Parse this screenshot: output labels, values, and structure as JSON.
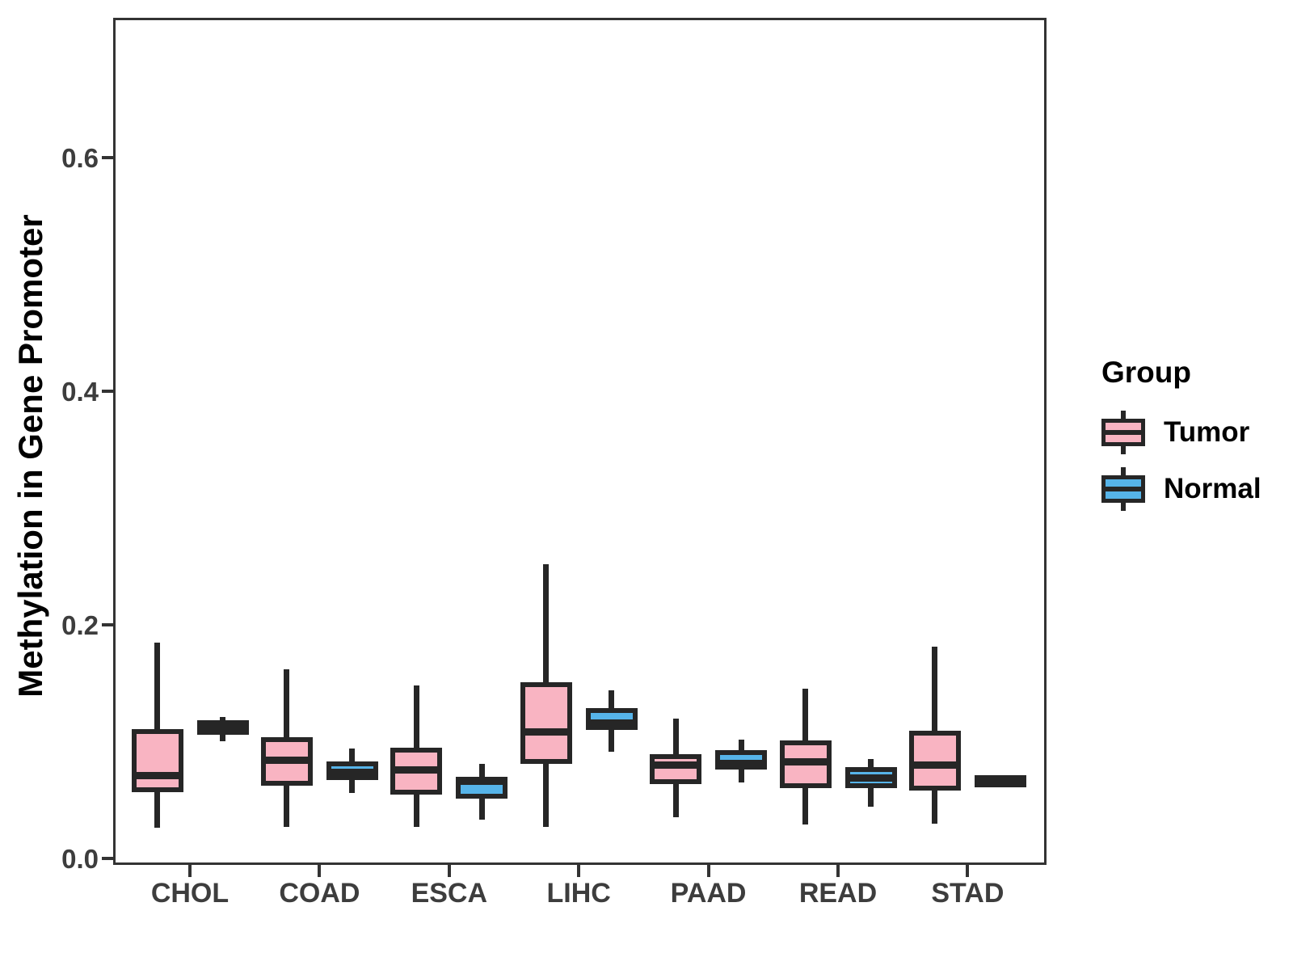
{
  "chart_data": {
    "type": "boxplot",
    "title": "",
    "xlabel": "",
    "ylabel": "Methylation in Gene Promoter",
    "categories": [
      "CHOL",
      "COAD",
      "ESCA",
      "LIHC",
      "PAAD",
      "READ",
      "STAD"
    ],
    "y_ticks": [
      "0.0",
      "0.2",
      "0.4",
      "0.6"
    ],
    "y_tick_values": [
      0.0,
      0.2,
      0.4,
      0.6
    ],
    "ylim": [
      -0.015,
      0.72
    ],
    "grid": "off",
    "legend": {
      "title": "Group",
      "position": "right",
      "entries": [
        {
          "label": "Tumor",
          "color": "#F9B4C2"
        },
        {
          "label": "Normal",
          "color": "#56B4E9"
        }
      ]
    },
    "colors": {
      "tumor_fill": "#F9B4C2",
      "normal_fill": "#56B4E9",
      "stroke": "#262626",
      "axis": "#333333"
    },
    "series": [
      {
        "name": "Tumor",
        "color": "#F9B4C2",
        "boxes": [
          {
            "category": "CHOL",
            "whisker_low": 0.026,
            "q1": 0.057,
            "median": 0.071,
            "q3": 0.111,
            "whisker_high": 0.185
          },
          {
            "category": "COAD",
            "whisker_low": 0.027,
            "q1": 0.062,
            "median": 0.084,
            "q3": 0.104,
            "whisker_high": 0.162
          },
          {
            "category": "ESCA",
            "whisker_low": 0.027,
            "q1": 0.055,
            "median": 0.076,
            "q3": 0.095,
            "whisker_high": 0.148
          },
          {
            "category": "LIHC",
            "whisker_low": 0.027,
            "q1": 0.081,
            "median": 0.108,
            "q3": 0.151,
            "whisker_high": 0.252
          },
          {
            "category": "PAAD",
            "whisker_low": 0.035,
            "q1": 0.064,
            "median": 0.08,
            "q3": 0.089,
            "whisker_high": 0.12
          },
          {
            "category": "READ",
            "whisker_low": 0.029,
            "q1": 0.06,
            "median": 0.083,
            "q3": 0.101,
            "whisker_high": 0.145
          },
          {
            "category": "STAD",
            "whisker_low": 0.03,
            "q1": 0.058,
            "median": 0.08,
            "q3": 0.109,
            "whisker_high": 0.181
          }
        ]
      },
      {
        "name": "Normal",
        "color": "#56B4E9",
        "boxes": [
          {
            "category": "CHOL",
            "whisker_low": 0.1,
            "q1": 0.106,
            "median": 0.112,
            "q3": 0.118,
            "whisker_high": 0.121
          },
          {
            "category": "COAD",
            "whisker_low": 0.056,
            "q1": 0.067,
            "median": 0.074,
            "q3": 0.083,
            "whisker_high": 0.094
          },
          {
            "category": "ESCA",
            "whisker_low": 0.033,
            "q1": 0.051,
            "median": 0.066,
            "q3": 0.07,
            "whisker_high": 0.081
          },
          {
            "category": "LIHC",
            "whisker_low": 0.091,
            "q1": 0.11,
            "median": 0.116,
            "q3": 0.129,
            "whisker_high": 0.144
          },
          {
            "category": "PAAD",
            "whisker_low": 0.065,
            "q1": 0.076,
            "median": 0.081,
            "q3": 0.093,
            "whisker_high": 0.102
          },
          {
            "category": "READ",
            "whisker_low": 0.044,
            "q1": 0.06,
            "median": 0.069,
            "q3": 0.078,
            "whisker_high": 0.085
          },
          {
            "category": "STAD",
            "whisker_low": 0.066,
            "q1": 0.067,
            "median": 0.068,
            "q3": 0.069,
            "whisker_high": 0.07
          }
        ]
      }
    ]
  }
}
